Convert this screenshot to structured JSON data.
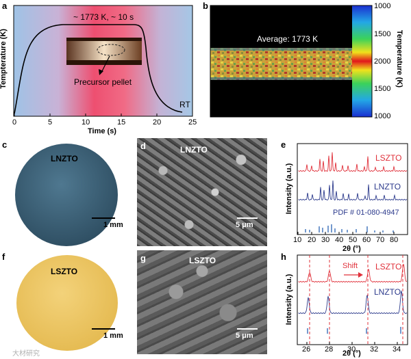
{
  "panels": {
    "a": {
      "letter": "a",
      "ylabel": "Tempterature (K)",
      "xlabel": "Time (s)",
      "annotation": "~ 1773 K,  ~ 10 s",
      "inset_label": "Precursor pellet",
      "end_label": "RT",
      "xticks": [
        "0",
        "5",
        "10",
        "15",
        "20",
        "25"
      ]
    },
    "b": {
      "letter": "b",
      "overlay": "Average: 1773 K",
      "colorbar_label": "Temperature (K)",
      "colorbar_ticks": [
        "1000",
        "1500",
        "2000",
        "1500",
        "1000"
      ]
    },
    "c": {
      "letter": "c",
      "sample": "LNZTO",
      "scale": "1 mm",
      "color": "#3f6478"
    },
    "d": {
      "letter": "d",
      "sample": "LNZTO",
      "scale": "5 μm"
    },
    "e": {
      "letter": "e",
      "ylabel": "Intensity (a.u.)",
      "xlabel": "2θ (°)",
      "xticks": [
        "10",
        "20",
        "30",
        "40",
        "50",
        "60",
        "70",
        "80"
      ],
      "series_labels": [
        "LSZTO",
        "LNZTO",
        "PDF # 01-080-4947"
      ]
    },
    "f": {
      "letter": "f",
      "sample": "LSZTO",
      "scale": "1 mm",
      "color": "#e9c25e"
    },
    "g": {
      "letter": "g",
      "sample": "LSZTO",
      "scale": "5 μm"
    },
    "h": {
      "letter": "h",
      "ylabel": "Intensity (a.u.)",
      "xlabel": "2θ (°)",
      "xticks": [
        "26",
        "28",
        "30",
        "32",
        "34"
      ],
      "series_labels": [
        "LSZTO",
        "LNZTO"
      ],
      "arrow_label": "Shift"
    }
  },
  "watermark": "大材研究",
  "colors": {
    "red": "#e0303a",
    "blue": "#2c3a8c",
    "ref": "#3a6fb8"
  }
}
